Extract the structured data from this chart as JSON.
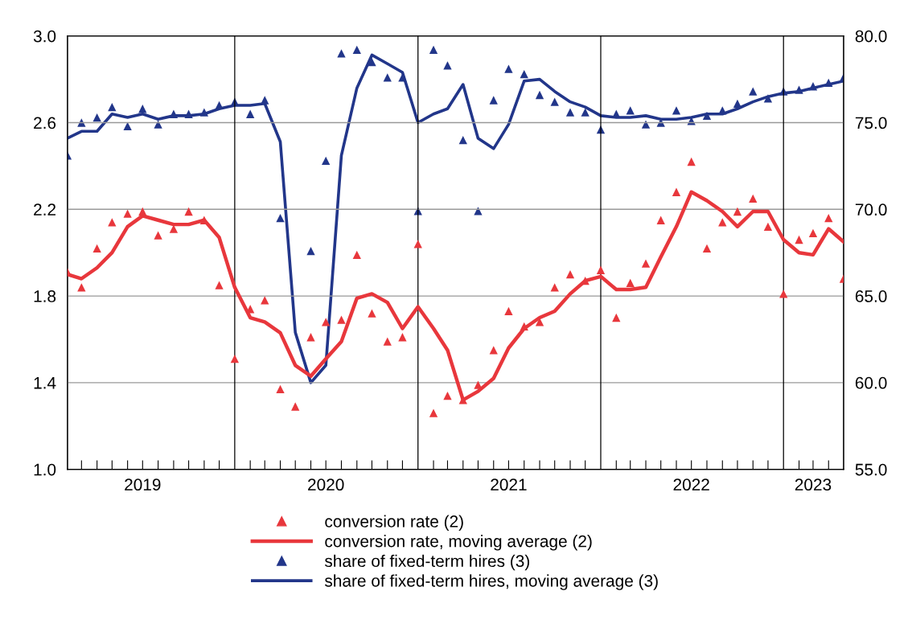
{
  "chart_data": {
    "type": "line",
    "x": [
      "2019-02",
      "2019-03",
      "2019-04",
      "2019-05",
      "2019-06",
      "2019-07",
      "2019-08",
      "2019-09",
      "2019-10",
      "2019-11",
      "2019-12",
      "2020-01",
      "2020-02",
      "2020-03",
      "2020-04",
      "2020-05",
      "2020-06",
      "2020-07",
      "2020-08",
      "2020-09",
      "2020-10",
      "2020-11",
      "2020-12",
      "2021-01",
      "2021-02",
      "2021-03",
      "2021-04",
      "2021-05",
      "2021-06",
      "2021-07",
      "2021-08",
      "2021-09",
      "2021-10",
      "2021-11",
      "2021-12",
      "2022-01",
      "2022-02",
      "2022-03",
      "2022-04",
      "2022-05",
      "2022-06",
      "2022-07",
      "2022-08",
      "2022-09",
      "2022-10",
      "2022-11",
      "2022-12",
      "2023-01",
      "2023-02",
      "2023-03",
      "2023-04",
      "2023-05"
    ],
    "xlim": [
      "2019-02",
      "2023-05"
    ],
    "xticks": [
      {
        "value": "2019-03",
        "label": null
      },
      {
        "value": "2019-04",
        "label": null
      },
      {
        "value": "2019-05",
        "label": null
      },
      {
        "value": "2019-06",
        "label": null
      },
      {
        "value": "2019-07",
        "label": "2019"
      },
      {
        "value": "2019-08",
        "label": null
      },
      {
        "value": "2019-09",
        "label": null
      },
      {
        "value": "2019-10",
        "label": null
      },
      {
        "value": "2019-11",
        "label": null
      },
      {
        "value": "2019-12",
        "label": null
      },
      {
        "value": "2020-02",
        "label": null
      },
      {
        "value": "2020-03",
        "label": null
      },
      {
        "value": "2020-04",
        "label": null
      },
      {
        "value": "2020-05",
        "label": null
      },
      {
        "value": "2020-06",
        "label": null
      },
      {
        "value": "2020-07",
        "label": "2020"
      },
      {
        "value": "2020-08",
        "label": null
      },
      {
        "value": "2020-09",
        "label": null
      },
      {
        "value": "2020-10",
        "label": null
      },
      {
        "value": "2020-11",
        "label": null
      },
      {
        "value": "2020-12",
        "label": null
      },
      {
        "value": "2021-02",
        "label": null
      },
      {
        "value": "2021-03",
        "label": null
      },
      {
        "value": "2021-04",
        "label": null
      },
      {
        "value": "2021-05",
        "label": null
      },
      {
        "value": "2021-06",
        "label": null
      },
      {
        "value": "2021-07",
        "label": "2021"
      },
      {
        "value": "2021-08",
        "label": null
      },
      {
        "value": "2021-09",
        "label": null
      },
      {
        "value": "2021-10",
        "label": null
      },
      {
        "value": "2021-11",
        "label": null
      },
      {
        "value": "2021-12",
        "label": null
      },
      {
        "value": "2022-02",
        "label": null
      },
      {
        "value": "2022-03",
        "label": null
      },
      {
        "value": "2022-04",
        "label": null
      },
      {
        "value": "2022-05",
        "label": null
      },
      {
        "value": "2022-06",
        "label": null
      },
      {
        "value": "2022-07",
        "label": "2022"
      },
      {
        "value": "2022-08",
        "label": null
      },
      {
        "value": "2022-09",
        "label": null
      },
      {
        "value": "2022-10",
        "label": null
      },
      {
        "value": "2022-11",
        "label": null
      },
      {
        "value": "2022-12",
        "label": null
      },
      {
        "value": "2023-02",
        "label": null
      },
      {
        "value": "2023-03",
        "label": "2023"
      },
      {
        "value": "2023-04",
        "label": null
      }
    ],
    "ylim": [
      1.0,
      3.0
    ],
    "yticks": [
      {
        "value": 1.0,
        "label": "1.0"
      },
      {
        "value": 1.4,
        "label": "1.4"
      },
      {
        "value": 1.8,
        "label": "1.8"
      },
      {
        "value": 2.2,
        "label": "2.2"
      },
      {
        "value": 2.6,
        "label": "2.6"
      },
      {
        "value": 3.0,
        "label": "3.0"
      }
    ],
    "y2lim": [
      55,
      80
    ],
    "y2ticks": [
      {
        "value": 55,
        "label": "55.0"
      },
      {
        "value": 60,
        "label": "60.0"
      },
      {
        "value": 65,
        "label": "65.0"
      },
      {
        "value": 70,
        "label": "70.0"
      },
      {
        "value": 75,
        "label": "75.0"
      },
      {
        "value": 80,
        "label": "80.0"
      }
    ],
    "grid": "y",
    "ref_lines": [
      {
        "axis": "x",
        "value": "2020-01",
        "color": "#000000"
      },
      {
        "axis": "x",
        "value": "2021-01",
        "color": "#000000"
      },
      {
        "axis": "x",
        "value": "2022-01",
        "color": "#000000"
      },
      {
        "axis": "x",
        "value": "2023-01",
        "color": "#000000"
      }
    ],
    "legend": "bottom",
    "series": [
      {
        "name": "conversion rate (2)",
        "type": "scatter",
        "marker": "triangle",
        "color": "#e8373c",
        "values": [
          1.91,
          1.84,
          2.02,
          2.14,
          2.18,
          2.19,
          2.08,
          2.11,
          2.19,
          2.15,
          1.85,
          1.51,
          1.74,
          1.78,
          1.37,
          1.29,
          1.61,
          1.68,
          1.69,
          1.99,
          1.72,
          1.59,
          1.61,
          2.04,
          1.26,
          1.34,
          1.32,
          1.39,
          1.55,
          1.73,
          1.66,
          1.68,
          1.84,
          1.9,
          1.87,
          1.92,
          1.7,
          1.86,
          1.95,
          2.15,
          2.28,
          2.42,
          2.02,
          2.14,
          2.19,
          2.25,
          2.12,
          1.81,
          2.06,
          2.09,
          2.16,
          1.88
        ]
      },
      {
        "name": "conversion rate, moving average (2)",
        "line_style": "solid",
        "color": "#e8373c",
        "values": [
          1.9,
          1.88,
          1.93,
          2.0,
          2.12,
          2.17,
          2.15,
          2.13,
          2.13,
          2.15,
          2.07,
          1.84,
          1.7,
          1.68,
          1.63,
          1.48,
          1.43,
          1.51,
          1.59,
          1.79,
          1.81,
          1.77,
          1.65,
          1.75,
          1.65,
          1.55,
          1.32,
          1.36,
          1.42,
          1.56,
          1.65,
          1.7,
          1.73,
          1.81,
          1.87,
          1.89,
          1.83,
          1.83,
          1.84,
          1.98,
          2.12,
          2.28,
          2.24,
          2.19,
          2.12,
          2.19,
          2.19,
          2.06,
          2.0,
          1.99,
          2.11,
          2.05
        ]
      },
      {
        "name": "share of fixed-term hires (3)",
        "type": "scatter",
        "marker": "triangle",
        "axis": "y2",
        "color": "#22368a",
        "values": [
          73.1,
          75.0,
          75.3,
          75.9,
          74.8,
          75.8,
          74.9,
          75.5,
          75.5,
          75.6,
          76.0,
          76.2,
          75.5,
          76.3,
          69.5,
          null,
          67.6,
          72.8,
          79.0,
          79.2,
          78.5,
          77.6,
          77.6,
          69.9,
          79.2,
          78.3,
          74.0,
          69.9,
          76.3,
          78.1,
          77.8,
          76.6,
          76.2,
          75.6,
          75.6,
          74.6,
          75.5,
          75.7,
          74.9,
          75.0,
          75.7,
          75.1,
          75.4,
          75.7,
          76.1,
          76.8,
          76.4,
          76.8,
          76.9,
          77.1,
          77.3,
          77.6
        ]
      },
      {
        "name": "share of fixed-term hires, moving average (3)",
        "line_style": "solid",
        "axis": "y2",
        "color": "#22368a",
        "values": [
          74.1,
          74.5,
          74.5,
          75.5,
          75.3,
          75.5,
          75.2,
          75.4,
          75.4,
          75.5,
          75.8,
          76.0,
          76.0,
          76.1,
          73.9,
          62.9,
          60.0,
          61.0,
          73.1,
          77.0,
          78.9,
          78.4,
          77.9,
          75.0,
          75.5,
          75.8,
          77.2,
          74.1,
          73.5,
          74.9,
          77.4,
          77.5,
          76.8,
          76.2,
          75.9,
          75.4,
          75.3,
          75.3,
          75.4,
          75.2,
          75.2,
          75.3,
          75.5,
          75.5,
          75.8,
          76.2,
          76.5,
          76.7,
          76.8,
          77.0,
          77.2,
          77.4
        ]
      }
    ]
  }
}
